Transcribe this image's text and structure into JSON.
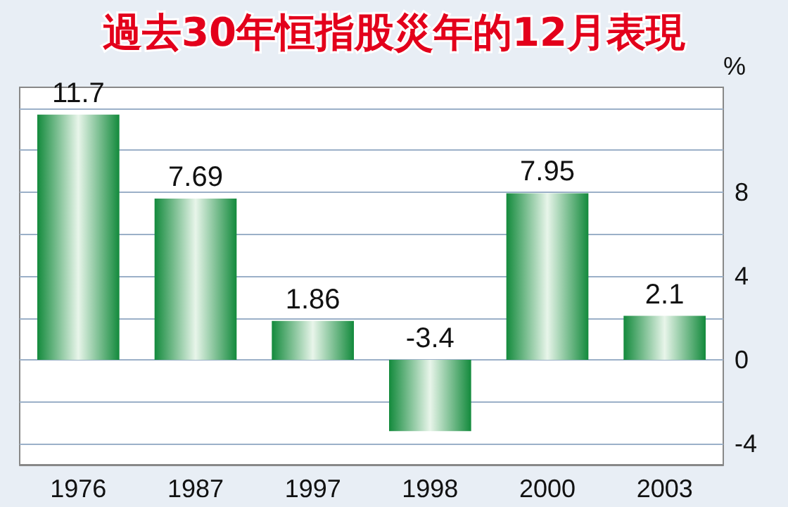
{
  "chart_data": {
    "type": "bar",
    "title": "過去30年恒指股災年的12月表現",
    "ylabel": "%",
    "categories": [
      "1976",
      "1987",
      "1997",
      "1998",
      "2000",
      "2003"
    ],
    "values": [
      11.7,
      7.69,
      1.86,
      -3.4,
      7.95,
      2.1
    ],
    "color": "#138a3c",
    "ylim": [
      -5,
      13
    ],
    "yticks": [
      -4,
      {
        "value": -2,
        "label": null
      },
      0,
      {
        "value": 2,
        "label": null
      },
      4,
      {
        "value": 6,
        "label": null
      },
      8,
      {
        "value": 10,
        "label": null
      },
      {
        "value": 12,
        "label": null
      }
    ],
    "grid": "y",
    "data_labels": true
  }
}
